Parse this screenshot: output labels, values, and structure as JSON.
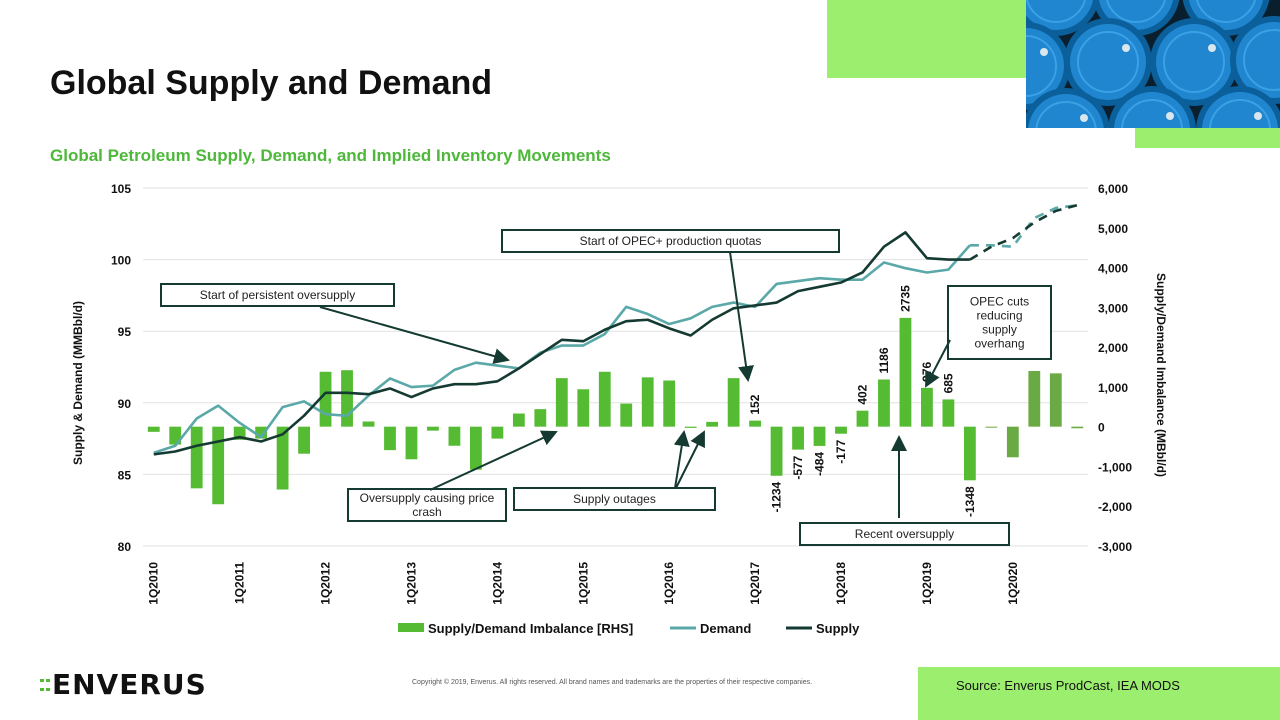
{
  "header": {
    "title": "Global Supply and Demand",
    "subtitle": "Global Petroleum Supply, Demand, and Implied Inventory Movements"
  },
  "footer": {
    "logo": "ENVERUS",
    "copyright": "Copyright © 2019, Enverus. All rights reserved. All brand names and trademarks are the properties of their respective companies.",
    "source": "Source: Enverus ProdCast, IEA MODS"
  },
  "colors": {
    "bar": "#55bb33",
    "bar_forecast": "#6aaa44",
    "demand": "#5aa8a8",
    "supply": "#143a32",
    "accent": "#9cef6e",
    "subtitle": "#4db83a"
  },
  "chart_data": {
    "type": "bar+line",
    "title": "Global Petroleum Supply, Demand, and Implied Inventory Movements",
    "ylabel": "Supply & Demand (MMBbl/d)",
    "y2label": "Supply/Demand Imbalance (MBbl/d)",
    "ylim": [
      80,
      105
    ],
    "y2lim": [
      -3000,
      6000
    ],
    "yticks": [
      "80",
      "85",
      "90",
      "95",
      "100",
      "105"
    ],
    "y2ticks": [
      "-3,000",
      "-2,000",
      "-1,000",
      "0",
      "1,000",
      "2,000",
      "3,000",
      "4,000",
      "5,000",
      "6,000"
    ],
    "grid": true,
    "legend_position": "bottom",
    "x_tick_labels": [
      "1Q2010",
      "1Q2011",
      "1Q2012",
      "1Q2013",
      "1Q2014",
      "1Q2015",
      "1Q2016",
      "1Q2017",
      "1Q2018",
      "1Q2019",
      "1Q2020"
    ],
    "categories": [
      "1Q2010",
      "2Q2010",
      "3Q2010",
      "4Q2010",
      "1Q2011",
      "2Q2011",
      "3Q2011",
      "4Q2011",
      "1Q2012",
      "2Q2012",
      "3Q2012",
      "4Q2012",
      "1Q2013",
      "2Q2013",
      "3Q2013",
      "4Q2013",
      "1Q2014",
      "2Q2014",
      "3Q2014",
      "4Q2014",
      "1Q2015",
      "2Q2015",
      "3Q2015",
      "4Q2015",
      "1Q2016",
      "2Q2016",
      "3Q2016",
      "4Q2016",
      "1Q2017",
      "2Q2017",
      "3Q2017",
      "4Q2017",
      "1Q2018",
      "2Q2018",
      "3Q2018",
      "4Q2018",
      "1Q2019",
      "2Q2019",
      "3Q2019",
      "4Q2019",
      "1Q2020",
      "2Q2020",
      "3Q2020",
      "4Q2020"
    ],
    "forecast_start": "4Q2019",
    "series": [
      {
        "name": "Supply/Demand Imbalance [RHS]",
        "type": "bar",
        "axis": "right",
        "values": [
          -130,
          -450,
          -1550,
          -1950,
          -330,
          -300,
          -1580,
          -680,
          1380,
          1420,
          130,
          -590,
          -820,
          -100,
          -480,
          -1080,
          -300,
          330,
          440,
          1220,
          940,
          1380,
          580,
          1240,
          1160,
          -30,
          120,
          1220,
          152,
          -1234,
          -577,
          -484,
          -177,
          402,
          1186,
          2735,
          976,
          685,
          -1348,
          0,
          -770,
          1400,
          1340,
          -40
        ]
      },
      {
        "name": "Demand",
        "type": "line",
        "axis": "left",
        "values": [
          86.5,
          87.0,
          88.9,
          89.8,
          88.6,
          87.6,
          89.7,
          90.1,
          89.2,
          89.1,
          90.5,
          91.7,
          91.1,
          91.2,
          92.3,
          92.8,
          92.6,
          92.4,
          93.5,
          94.0,
          94.0,
          94.8,
          96.7,
          96.2,
          95.5,
          95.9,
          96.7,
          97.0,
          96.7,
          98.3,
          98.5,
          98.7,
          98.6,
          98.6,
          99.8,
          99.4,
          99.1,
          99.3,
          101.0,
          101.0,
          100.9,
          102.9,
          103.6,
          103.8
        ]
      },
      {
        "name": "Supply",
        "type": "line",
        "axis": "left",
        "values": [
          86.4,
          86.6,
          87.0,
          87.3,
          87.6,
          87.3,
          87.8,
          89.1,
          90.7,
          90.7,
          90.6,
          91.0,
          90.4,
          91.0,
          91.3,
          91.3,
          91.5,
          92.4,
          93.4,
          94.4,
          94.3,
          95.1,
          95.7,
          95.8,
          95.2,
          94.7,
          95.8,
          96.6,
          96.8,
          97.0,
          97.8,
          98.1,
          98.4,
          99.1,
          100.9,
          101.9,
          100.1,
          100.0,
          100.0,
          100.9,
          101.5,
          102.6,
          103.4,
          103.8
        ]
      }
    ],
    "data_labels": [
      {
        "category": "1Q2017",
        "text": "152"
      },
      {
        "category": "2Q2017",
        "text": "-1234"
      },
      {
        "category": "3Q2017",
        "text": "-577"
      },
      {
        "category": "4Q2017",
        "text": "-484"
      },
      {
        "category": "1Q2018",
        "text": "-177"
      },
      {
        "category": "2Q2018",
        "text": "402"
      },
      {
        "category": "3Q2018",
        "text": "1186"
      },
      {
        "category": "4Q2018",
        "text": "2735"
      },
      {
        "category": "1Q2019",
        "text": "976"
      },
      {
        "category": "2Q2019",
        "text": "685"
      },
      {
        "category": "3Q2019",
        "text": "-1348"
      }
    ],
    "annotations": [
      {
        "id": "opec-quota-callout",
        "text": "Start of OPEC+ production quotas"
      },
      {
        "id": "persistent-oversupply-callout",
        "text": "Start of persistent oversupply"
      },
      {
        "id": "oversupply-crash-callout",
        "text": "Oversupply causing price crash"
      },
      {
        "id": "supply-outages-callout",
        "text": "Supply outages"
      },
      {
        "id": "recent-oversupply-callout",
        "text": "Recent oversupply"
      },
      {
        "id": "opec-cuts-callout",
        "text": "OPEC cuts reducing supply overhang"
      }
    ]
  }
}
